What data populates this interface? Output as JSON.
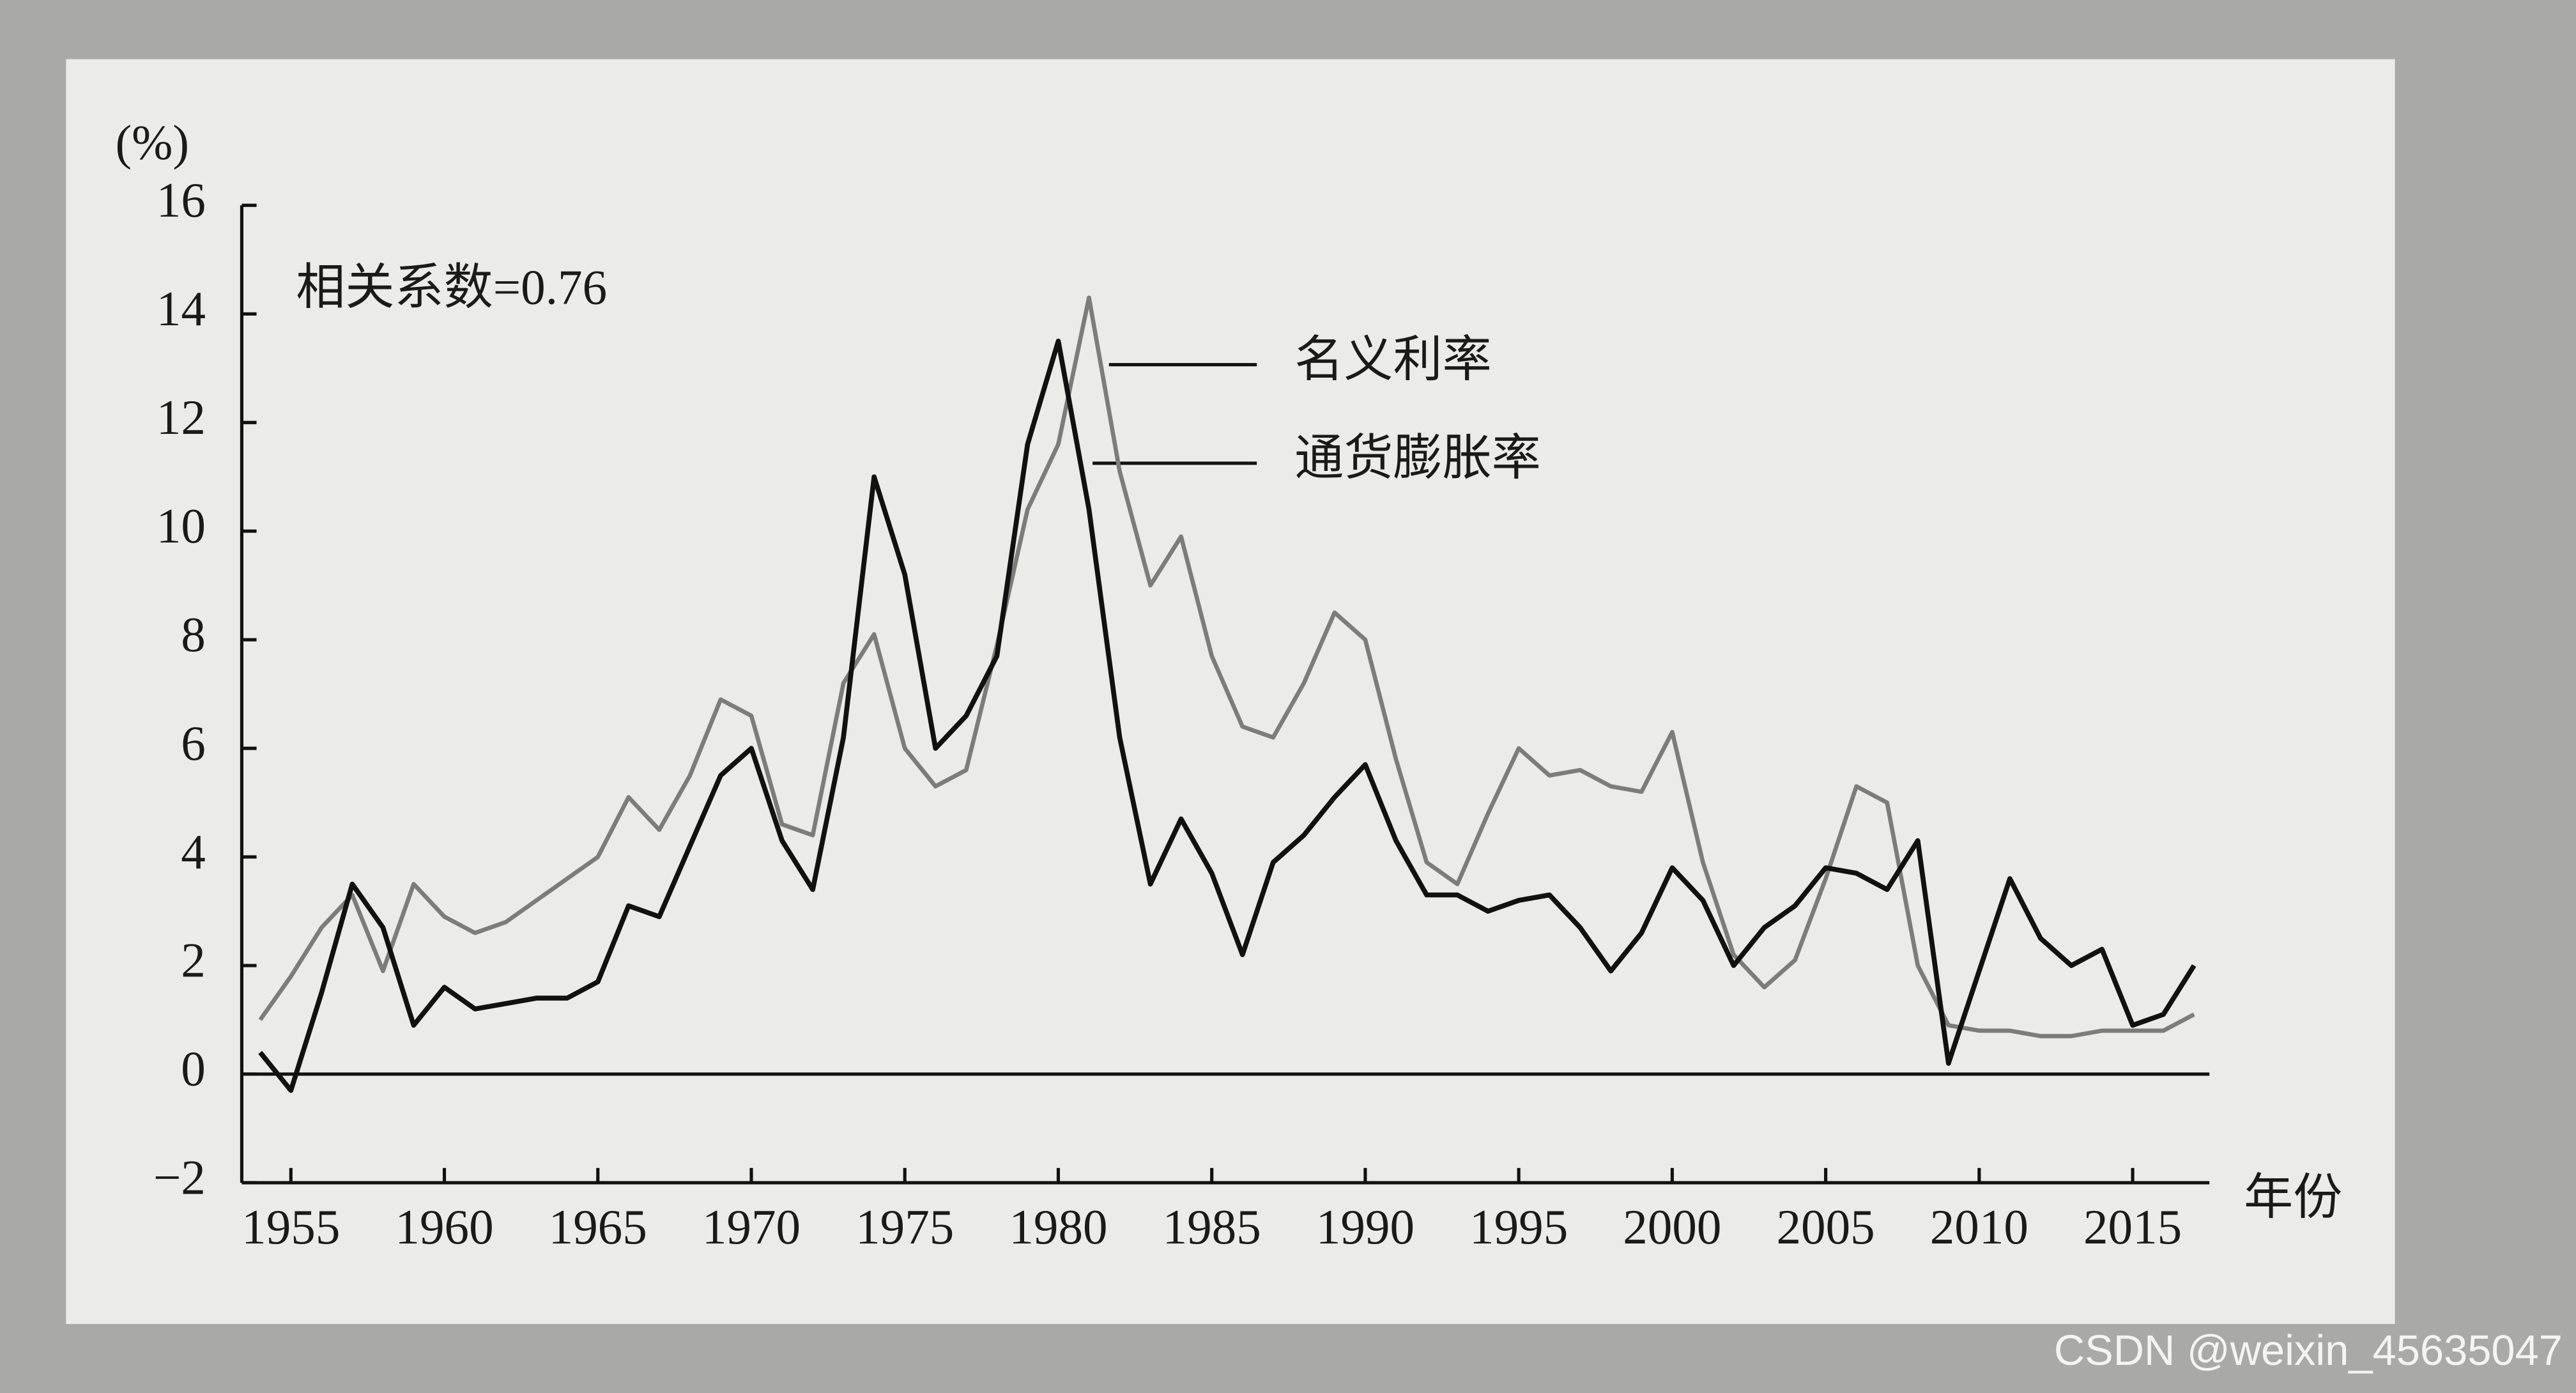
{
  "chart_data": {
    "type": "line",
    "ylabel": "(%)",
    "xlabel": "年份",
    "annotation": "相关系数=0.76",
    "x": [
      1954,
      1955,
      1956,
      1957,
      1958,
      1959,
      1960,
      1961,
      1962,
      1963,
      1964,
      1965,
      1966,
      1967,
      1968,
      1969,
      1970,
      1971,
      1972,
      1973,
      1974,
      1975,
      1976,
      1977,
      1978,
      1979,
      1980,
      1981,
      1982,
      1983,
      1984,
      1985,
      1986,
      1987,
      1988,
      1989,
      1990,
      1991,
      1992,
      1993,
      1994,
      1995,
      1996,
      1997,
      1998,
      1999,
      2000,
      2001,
      2002,
      2003,
      2004,
      2005,
      2006,
      2007,
      2008,
      2009,
      2010,
      2011,
      2012,
      2013,
      2014,
      2015,
      2016,
      2017
    ],
    "series": [
      {
        "name": "名义利率",
        "color": "#7c7c7c",
        "values": [
          1.0,
          1.8,
          2.7,
          3.3,
          1.9,
          3.5,
          2.9,
          2.6,
          2.8,
          3.2,
          3.6,
          4.0,
          5.1,
          4.5,
          5.5,
          6.9,
          6.6,
          4.6,
          4.4,
          7.2,
          8.1,
          6.0,
          5.3,
          5.6,
          7.9,
          10.4,
          11.6,
          14.3,
          11.1,
          9.0,
          9.9,
          7.7,
          6.4,
          6.2,
          7.2,
          8.5,
          8.0,
          5.8,
          3.9,
          3.5,
          4.8,
          6.0,
          5.5,
          5.6,
          5.3,
          5.2,
          6.3,
          3.9,
          2.2,
          1.6,
          2.1,
          3.6,
          5.3,
          5.0,
          2.0,
          0.9,
          0.8,
          0.8,
          0.7,
          0.7,
          0.8,
          0.8,
          0.8,
          1.1
        ]
      },
      {
        "name": "通货膨胀率",
        "color": "#111111",
        "values": [
          0.4,
          -0.3,
          1.5,
          3.5,
          2.7,
          0.9,
          1.6,
          1.2,
          1.3,
          1.4,
          1.4,
          1.7,
          3.1,
          2.9,
          4.2,
          5.5,
          6.0,
          4.3,
          3.4,
          6.2,
          11.0,
          9.2,
          6.0,
          6.6,
          7.7,
          11.6,
          13.5,
          10.4,
          6.2,
          3.5,
          4.7,
          3.7,
          2.2,
          3.9,
          4.4,
          5.1,
          5.7,
          4.3,
          3.3,
          3.3,
          3.0,
          3.2,
          3.3,
          2.7,
          1.9,
          2.6,
          3.8,
          3.2,
          2.0,
          2.7,
          3.1,
          3.8,
          3.7,
          3.4,
          4.3,
          0.2,
          1.9,
          3.6,
          2.5,
          2.0,
          2.3,
          0.9,
          1.1,
          2.0
        ]
      }
    ],
    "xlim": [
      1953.4,
      2017.5
    ],
    "xticks": [
      1955,
      1960,
      1965,
      1970,
      1975,
      1980,
      1985,
      1990,
      1995,
      2000,
      2005,
      2010,
      2015
    ],
    "ylim": [
      -2,
      16
    ],
    "yticks": [
      {
        "value": -2,
        "label": "−2"
      },
      0,
      2,
      4,
      6,
      8,
      10,
      12,
      14,
      16
    ],
    "zero_line": true
  },
  "watermark": "CSDN @weixin_45635047"
}
